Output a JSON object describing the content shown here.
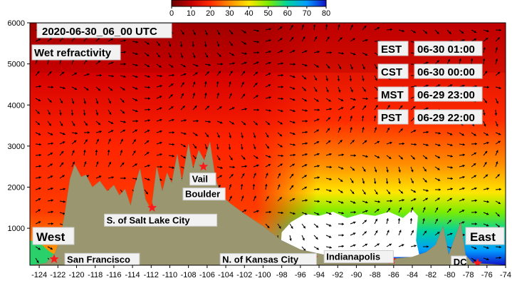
{
  "chart_data": {
    "type": "heatmap",
    "title": "2020-06-30_06_00 UTC",
    "subtitle": "Wet refractivity",
    "colorbar": {
      "ticks": [
        0,
        10,
        20,
        30,
        40,
        50,
        60,
        70,
        80
      ],
      "range": [
        0,
        80
      ],
      "colors": [
        "#6a0000",
        "#c40000",
        "#ff2a00",
        "#ff8c00",
        "#ffe600",
        "#7cec00",
        "#00d2a0",
        "#009cff",
        "#1010c8"
      ]
    },
    "xlim": [
      -125,
      -74
    ],
    "ylim": [
      100,
      6000
    ],
    "x_ticks": [
      -124,
      -122,
      -120,
      -118,
      -116,
      -114,
      -112,
      -110,
      -108,
      -106,
      -104,
      -102,
      -100,
      -98,
      -96,
      -94,
      -92,
      -90,
      -88,
      -86,
      -84,
      -82,
      -80,
      -78,
      -76,
      -74
    ],
    "y_ticks": [
      1000,
      2000,
      3000,
      4000,
      5000,
      6000
    ],
    "terrain": [
      {
        "x": -125,
        "y": 100
      },
      {
        "x": -123.3,
        "y": 150
      },
      {
        "x": -122.3,
        "y": 400
      },
      {
        "x": -121.8,
        "y": 700
      },
      {
        "x": -121.3,
        "y": 1300
      },
      {
        "x": -120.7,
        "y": 2200
      },
      {
        "x": -120.2,
        "y": 2550
      },
      {
        "x": -119.5,
        "y": 2250
      },
      {
        "x": -119,
        "y": 2300
      },
      {
        "x": -118.3,
        "y": 2000
      },
      {
        "x": -117.5,
        "y": 2150
      },
      {
        "x": -116.7,
        "y": 1900
      },
      {
        "x": -116,
        "y": 2050
      },
      {
        "x": -115.4,
        "y": 1800
      },
      {
        "x": -114.8,
        "y": 1950
      },
      {
        "x": -114.2,
        "y": 1550
      },
      {
        "x": -113.8,
        "y": 2000
      },
      {
        "x": -113.2,
        "y": 2450
      },
      {
        "x": -112.6,
        "y": 1700
      },
      {
        "x": -112,
        "y": 1450
      },
      {
        "x": -111.4,
        "y": 2500
      },
      {
        "x": -110.8,
        "y": 1900
      },
      {
        "x": -110.3,
        "y": 2350
      },
      {
        "x": -109.8,
        "y": 2100
      },
      {
        "x": -109.2,
        "y": 2800
      },
      {
        "x": -108.7,
        "y": 2150
      },
      {
        "x": -108,
        "y": 3050
      },
      {
        "x": -107.5,
        "y": 2450
      },
      {
        "x": -106.9,
        "y": 2900
      },
      {
        "x": -106.3,
        "y": 2650
      },
      {
        "x": -105.7,
        "y": 3100
      },
      {
        "x": -105.1,
        "y": 2200
      },
      {
        "x": -104.5,
        "y": 1800
      },
      {
        "x": -103.5,
        "y": 1600
      },
      {
        "x": -102,
        "y": 1350
      },
      {
        "x": -100,
        "y": 1050
      },
      {
        "x": -98,
        "y": 700
      },
      {
        "x": -96,
        "y": 480
      },
      {
        "x": -94,
        "y": 380
      },
      {
        "x": -92,
        "y": 280
      },
      {
        "x": -90,
        "y": 260
      },
      {
        "x": -88,
        "y": 320
      },
      {
        "x": -86,
        "y": 260
      },
      {
        "x": -84,
        "y": 300
      },
      {
        "x": -82.5,
        "y": 420
      },
      {
        "x": -81.5,
        "y": 600
      },
      {
        "x": -80.7,
        "y": 1050
      },
      {
        "x": -80.1,
        "y": 350
      },
      {
        "x": -79.4,
        "y": 800
      },
      {
        "x": -78.8,
        "y": 1150
      },
      {
        "x": -78.3,
        "y": 350
      },
      {
        "x": -77.5,
        "y": 150
      },
      {
        "x": -74,
        "y": 100
      }
    ],
    "cities": [
      {
        "name": "San Francisco",
        "x": -122.4,
        "y": 250
      },
      {
        "name": "S. of Salt Lake City",
        "x": -111.9,
        "y": 1500
      },
      {
        "name": "Vail",
        "x": -106.4,
        "y": 2500
      },
      {
        "name": "Boulder",
        "x": -105.3,
        "y": 1650
      },
      {
        "name": "N. of Kansas City",
        "x": -94.6,
        "y": 280
      },
      {
        "name": "Indianapolis",
        "x": -86.2,
        "y": 230
      },
      {
        "name": "DC",
        "x": -77.0,
        "y": 150
      }
    ],
    "side_labels": {
      "west": "West",
      "east": "East"
    },
    "time_zones": [
      {
        "zone": "EST",
        "time": "06-30 01:00"
      },
      {
        "zone": "CST",
        "time": "06-30 00:00"
      },
      {
        "zone": "MST",
        "time": "06-29 23:00"
      },
      {
        "zone": "PST",
        "time": "06-29 22:00"
      }
    ]
  }
}
